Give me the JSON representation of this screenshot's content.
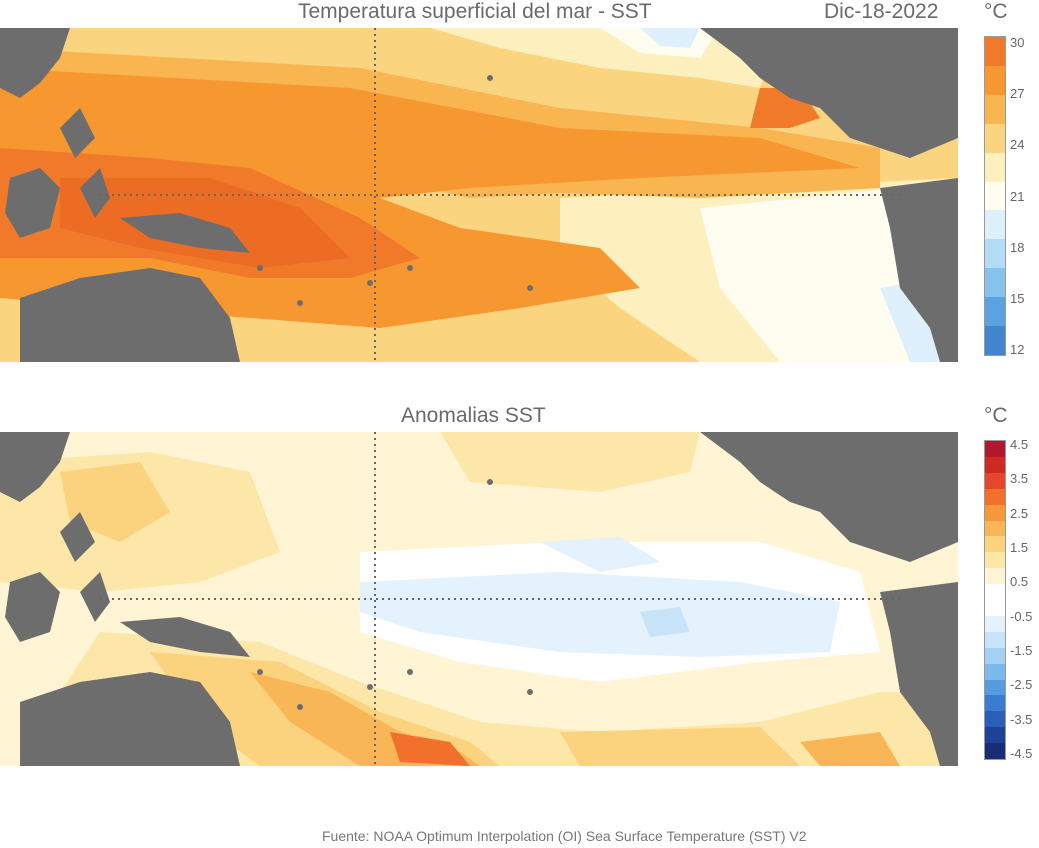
{
  "panels": {
    "sst": {
      "title": "Temperatura superficial del mar - SST",
      "date": "Dic-18-2022",
      "unit": "°C",
      "colorbar": {
        "ticks": [
          "30",
          "27",
          "24",
          "21",
          "18",
          "15",
          "12"
        ],
        "colors": [
          "#f07a2a",
          "#f6982f",
          "#f9b550",
          "#fbd480",
          "#fdf0be",
          "#fffdf0",
          "#def0fb",
          "#b3dcf6",
          "#86c2ee",
          "#5ba3e0",
          "#3f86cf"
        ]
      }
    },
    "anom": {
      "title": "Anomalias SST",
      "unit": "°C",
      "colorbar": {
        "ticks": [
          "4.5",
          "3.5",
          "2.5",
          "1.5",
          "0.5",
          "-0.5",
          "-1.5",
          "-2.5",
          "-3.5",
          "-4.5"
        ],
        "colors": [
          "#b2182b",
          "#cf2a22",
          "#e4472a",
          "#f0702c",
          "#f6973a",
          "#f8b656",
          "#fbd27e",
          "#fde7a8",
          "#fff5d4",
          "#ffffff",
          "#ffffff",
          "#e3f2fc",
          "#c7e4f8",
          "#a3d1f3",
          "#7bb9ec",
          "#559be0",
          "#3a7ccf",
          "#2a5eb8",
          "#1f4299",
          "#182d75"
        ]
      }
    }
  },
  "source": "Fuente: NOAA Optimum Interpolation (OI) Sea Surface Temperature (SST) V2",
  "land_color": "#6e6d6d",
  "grid_color": "#666666"
}
